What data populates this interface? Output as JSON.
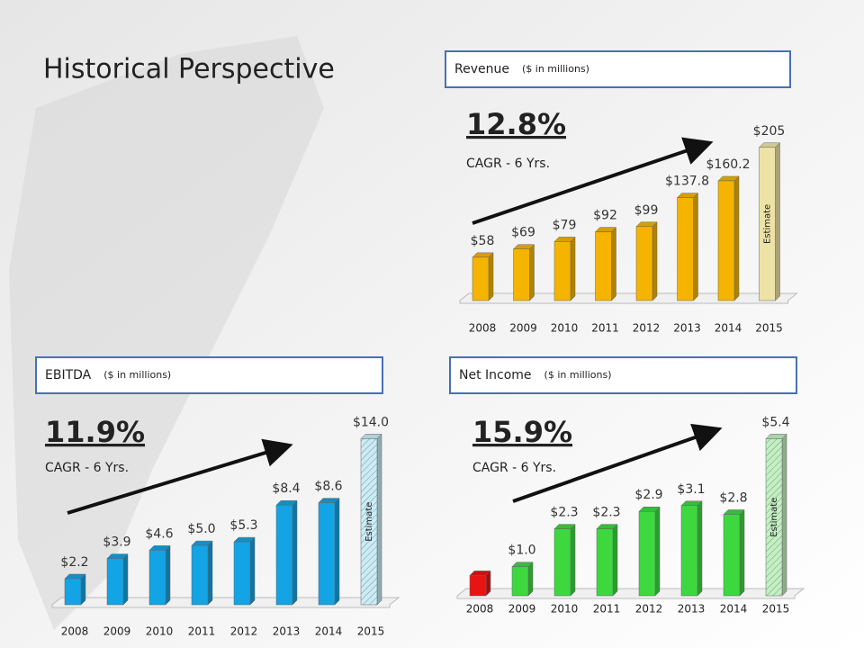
{
  "title": "Historical Perspective",
  "chart_data": [
    {
      "type": "bar",
      "title": "Revenue",
      "subtitle": "($ in millions)",
      "annotation": "12.8%",
      "annotation_note": "CAGR - 6 Yrs.",
      "categories": [
        "2008",
        "2009",
        "2010",
        "2011",
        "2012",
        "2013",
        "2014",
        "2015"
      ],
      "values": [
        58,
        69,
        79,
        92,
        99,
        137.8,
        160.2,
        205
      ],
      "value_labels": [
        "$58",
        "$69",
        "$79",
        "$92",
        "$99",
        "$137.8",
        "$160.2",
        "$205"
      ],
      "colors": [
        "#f5b400",
        "#f5b400",
        "#f5b400",
        "#f5b400",
        "#f5b400",
        "#f5b400",
        "#f5b400",
        "#ede3a6"
      ],
      "estimate_label": "Estimate",
      "hatched": false,
      "ylim": [
        0,
        230
      ]
    },
    {
      "type": "bar",
      "title": "EBITDA",
      "subtitle": "($ in millions)",
      "annotation": "11.9%",
      "annotation_note": "CAGR - 6 Yrs.",
      "categories": [
        "2008",
        "2009",
        "2010",
        "2011",
        "2012",
        "2013",
        "2014",
        "2015"
      ],
      "values": [
        2.2,
        3.9,
        4.6,
        5.0,
        5.3,
        8.4,
        8.6,
        14.0
      ],
      "value_labels": [
        "$2.2",
        "$3.9",
        "$4.6",
        "$5.0",
        "$5.3",
        "$8.4",
        "$8.6",
        "$14.0"
      ],
      "colors": [
        "#12a4e4",
        "#12a4e4",
        "#12a4e4",
        "#12a4e4",
        "#12a4e4",
        "#12a4e4",
        "#12a4e4",
        "#c9ecf6"
      ],
      "estimate_label": "Estimate",
      "hatched": true,
      "ylim": [
        0,
        16
      ]
    },
    {
      "type": "bar",
      "title": "Net Income",
      "subtitle": "($ in millions)",
      "annotation": "15.9%",
      "annotation_note": "CAGR - 6 Yrs.",
      "categories": [
        "2008",
        "2009",
        "2010",
        "2011",
        "2012",
        "2013",
        "2014",
        "2015"
      ],
      "values": [
        0.7,
        1.0,
        2.3,
        2.3,
        2.9,
        3.1,
        2.8,
        5.4
      ],
      "value_labels": [
        null,
        "$1.0",
        "$2.3",
        "$2.3",
        "$2.9",
        "$3.1",
        "$2.8",
        "$5.4"
      ],
      "colors": [
        "#e81414",
        "#3cd83e",
        "#3cd83e",
        "#3cd83e",
        "#3cd83e",
        "#3cd83e",
        "#3cd83e",
        "#c2f0c2"
      ],
      "estimate_label": "Estimate",
      "hatched": true,
      "ylim": [
        0,
        6
      ]
    }
  ]
}
